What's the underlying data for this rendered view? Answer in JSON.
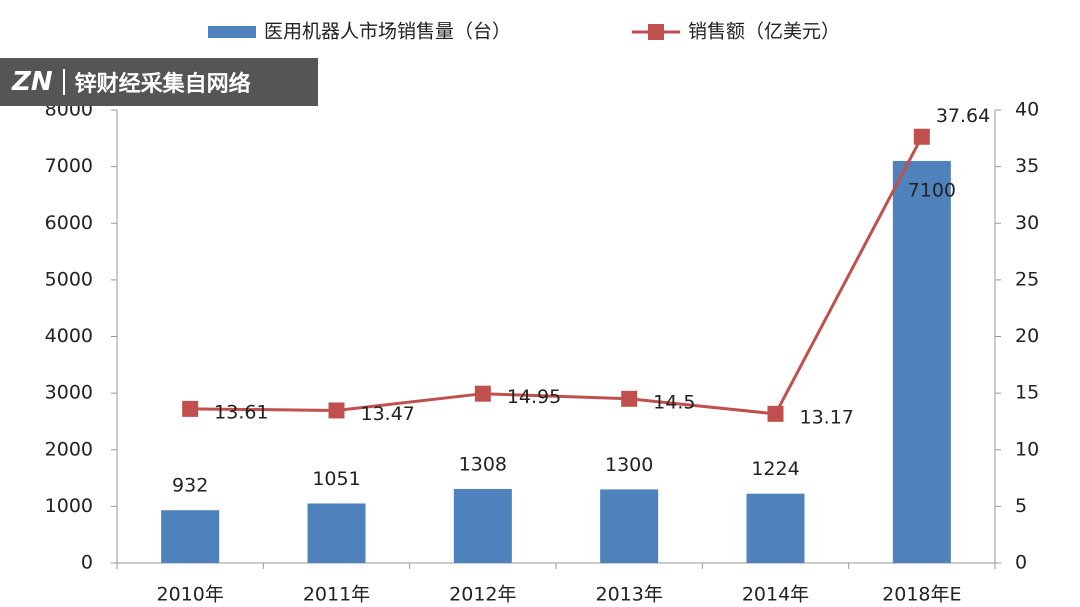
{
  "chart_data": {
    "type": "bar_line",
    "categories": [
      "2010年",
      "2011年",
      "2012年",
      "2013年",
      "2014年",
      "2018年E"
    ],
    "series": [
      {
        "name": "医用机器人市场销售量（台）",
        "type": "bar",
        "color": "#4f81bd",
        "values": [
          932,
          1051,
          1308,
          1300,
          1224,
          7100
        ]
      },
      {
        "name": "销售额（亿美元）",
        "type": "line",
        "axis": "y2",
        "color": "#c0504d",
        "values": [
          13.61,
          13.47,
          14.95,
          14.5,
          13.17,
          37.64
        ]
      }
    ],
    "ylim": [
      0,
      8000
    ],
    "yticks": [
      0,
      1000,
      2000,
      3000,
      4000,
      5000,
      6000,
      7000,
      8000
    ],
    "y2lim": [
      0,
      40
    ],
    "y2ticks": [
      0,
      5,
      10,
      15,
      20,
      25,
      30,
      35,
      40
    ],
    "grid": false,
    "watermark": {
      "logo": "ZN",
      "text": "锌财经采集自网络"
    }
  }
}
